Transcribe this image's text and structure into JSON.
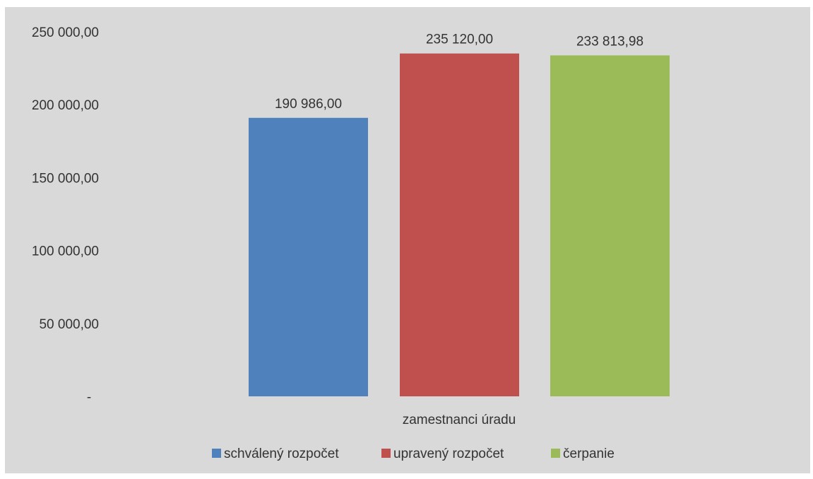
{
  "chart_data": {
    "type": "bar",
    "categories": [
      "zamestnanci úradu"
    ],
    "series": [
      {
        "name": "schválený rozpočet",
        "values": [
          190986.0
        ],
        "label": "190 986,00",
        "color": "#4f81bd"
      },
      {
        "name": "upravený rozpočet",
        "values": [
          235120.0
        ],
        "label": "235 120,00",
        "color": "#c0504d"
      },
      {
        "name": "čerpanie",
        "values": [
          233813.98
        ],
        "label": "233 813,98",
        "color": "#9bbb59"
      }
    ],
    "yticks": [
      {
        "value": 0,
        "label": "-"
      },
      {
        "value": 50000,
        "label": "50 000,00"
      },
      {
        "value": 100000,
        "label": "100 000,00"
      },
      {
        "value": 150000,
        "label": "150 000,00"
      },
      {
        "value": 200000,
        "label": "200 000,00"
      },
      {
        "value": 250000,
        "label": "250 000,00"
      }
    ],
    "ylim": [
      0,
      250000
    ],
    "grid": false,
    "legend_position": "bottom",
    "background": "#d9d9d9"
  }
}
